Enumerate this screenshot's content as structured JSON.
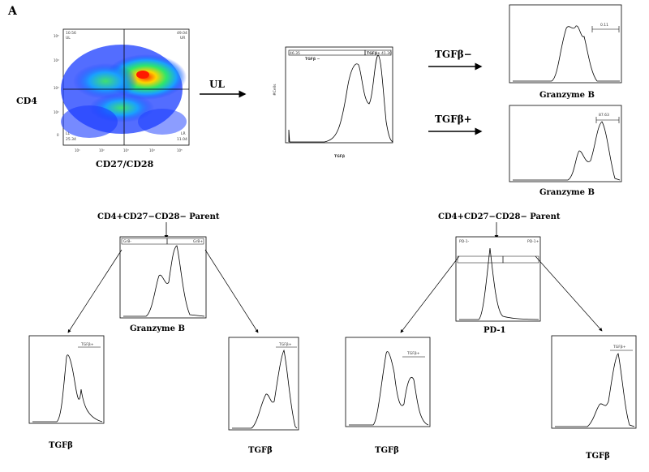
{
  "panel_letter": "A",
  "top": {
    "dot_plot": {
      "y_label": "CD4",
      "x_label": "CD27/CD28",
      "quadrants": {
        "ul_value": "10.56",
        "ul_tag": "UL",
        "ur_value": "49.04",
        "ur_tag": "UR",
        "ll_value": "25.34",
        "ll_tag": "LL",
        "lr_value": "11.04",
        "lr_tag": "LR"
      },
      "y_ticks": [
        "10⁵",
        "10⁴",
        "10³",
        "10²",
        "0"
      ],
      "x_ticks": [
        "10¹",
        "10²",
        "10³",
        "10⁴",
        "10⁵"
      ]
    },
    "arrow_ul_label": "UL",
    "tgfb_hist": {
      "x_label": "TGFβ",
      "y_label": "#Cells",
      "gate_neg_label": "TGFβ −",
      "gate_neg_value": "46.35",
      "gate_pos_label": "TGFβ+",
      "gate_pos_value": "41.30"
    },
    "branch_neg_label": "TGFβ−",
    "branch_pos_label": "TGFβ+",
    "gzb_neg_hist": {
      "x_label": "Granzyme B",
      "gate_value": "0.11"
    },
    "gzb_pos_hist": {
      "x_label": "Granzyme B",
      "gate_value": "87.63"
    }
  },
  "bottom_left": {
    "parent_label": "CD4+CD27−CD28− Parent",
    "center_hist": {
      "x_label": "Granzyme B",
      "gate_left": "GrB-",
      "gate_right": "GrB+"
    },
    "left_hist": {
      "x_label": "TGFβ",
      "gate": "TGFβ+"
    },
    "right_hist": {
      "x_label": "TGFβ",
      "gate": "TGFβ+"
    }
  },
  "bottom_right": {
    "parent_label": "CD4+CD27−CD28− Parent",
    "center_hist": {
      "x_label": "PD-1",
      "gate_left": "PD-1-",
      "gate_right": "PD-1+"
    },
    "left_hist": {
      "x_label": "TGFβ",
      "gate": "TGFβ+"
    },
    "right_hist": {
      "x_label": "TGFβ",
      "gate": "TGFβ+"
    }
  }
}
